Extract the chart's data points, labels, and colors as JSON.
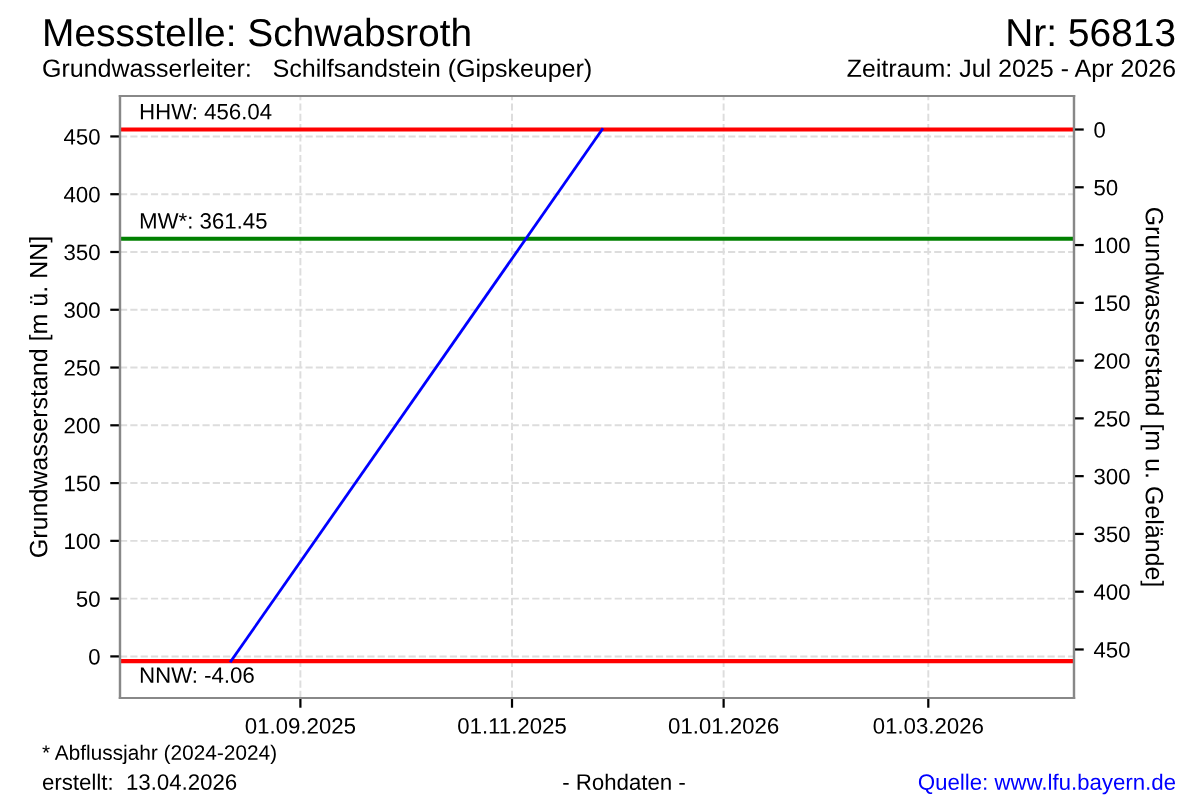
{
  "chart_data": {
    "type": "line",
    "title": "Messstelle: Schwabsroth",
    "subtitle": "Grundwasserleiter:   Schilfsandstein (Gipskeuper)",
    "xlabel": null,
    "ylabel": "Grundwasserstand [m ü. NN]",
    "y2label": "Grundwasserstand [m u. Gelände]",
    "annotations": [
      "Nr: 56813",
      "Zeitraum: Jul 2025 - Apr 2026",
      "* Abflussjahr (2024-2024)",
      "erstellt:  13.04.2026",
      "- Rohdaten -",
      "Quelle: www.lfu.bayern.de"
    ],
    "series": [
      {
        "color": "#0000ff",
        "x": [
          "2025-08-12",
          "2025-11-27"
        ],
        "values": [
          -4.06,
          456.04
        ]
      }
    ],
    "xlim": [
      "2025-07-11",
      "2026-04-12"
    ],
    "xticks": [
      {
        "value": "2025-09-01",
        "label": "01.09.2025"
      },
      {
        "value": "2025-11-01",
        "label": "01.11.2025"
      },
      {
        "value": "2026-01-01",
        "label": "01.01.2026"
      },
      {
        "value": "2026-03-01",
        "label": "01.03.2026"
      }
    ],
    "ylim": [
      -36,
      485
    ],
    "yticks": [
      0,
      50,
      100,
      150,
      200,
      250,
      300,
      350,
      400,
      450
    ],
    "y2lim": [
      492,
      -29
    ],
    "y2ticks": [
      0,
      50,
      100,
      150,
      200,
      250,
      300,
      350,
      400,
      450
    ],
    "ref_lines": [
      {
        "axis": "y",
        "value": 456.04,
        "label": "HHW: 456.04",
        "color": "#ff0000"
      },
      {
        "axis": "y",
        "value": 361.45,
        "label": "MW*: 361.45",
        "color": "#008000"
      },
      {
        "axis": "y",
        "value": -4.06,
        "label": "NNW: -4.06",
        "color": "#ff0000"
      }
    ],
    "grid": true,
    "legend": false,
    "line_style": "solid",
    "marker": "none"
  }
}
